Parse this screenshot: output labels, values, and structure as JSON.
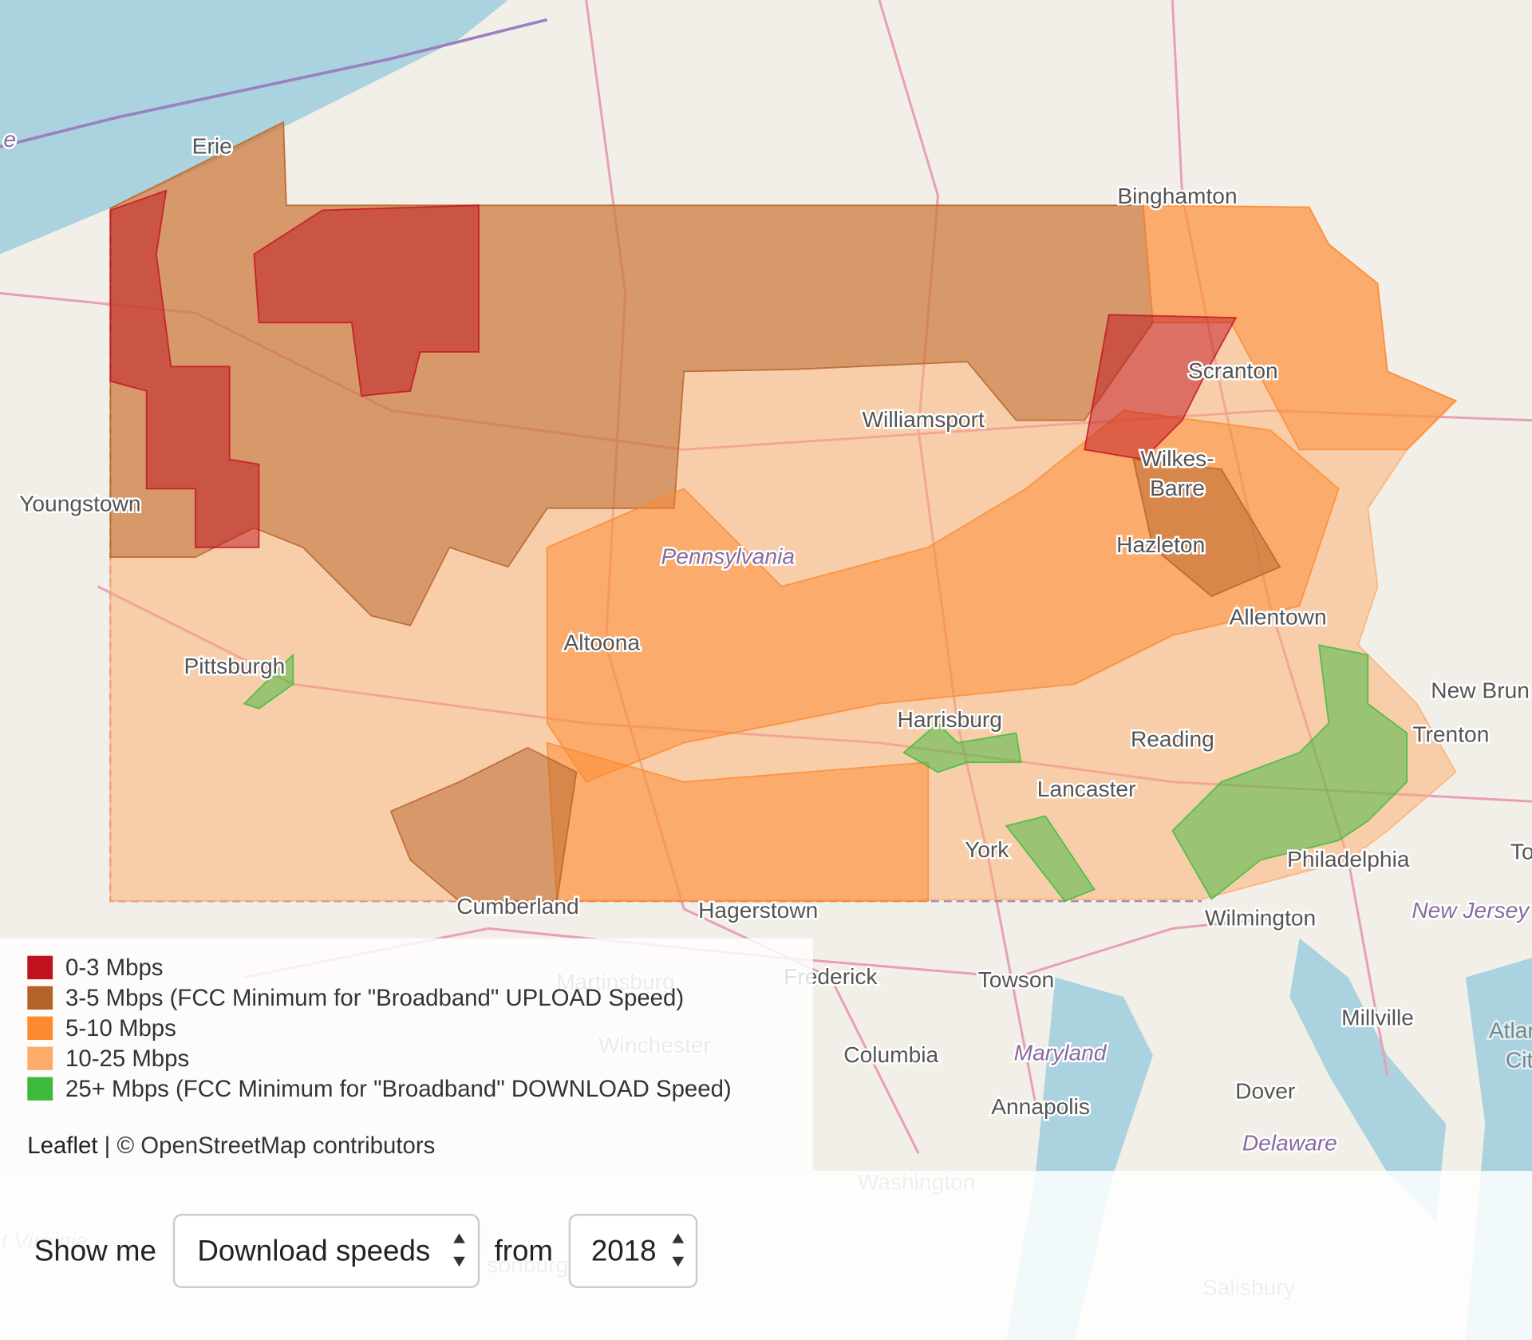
{
  "map": {
    "places": [
      "e",
      "Erie",
      "Binghamton",
      "Scranton",
      "Williamsport",
      "Wilkes-",
      "Barre",
      "Youngstown",
      "Hazleton",
      "Pennsylvania",
      "Allentown",
      "Altoona",
      "Pittsburgh",
      "New Brun",
      "Harrisburg",
      "Trenton",
      "Reading",
      "Lancaster",
      "York",
      "Philadelphia",
      "To",
      "Cumberland",
      "Hagerstown",
      "Wilmington",
      "New Jersey",
      "Martinsburg",
      "Frederick",
      "Towson",
      "Winchester",
      "Millville",
      "Atlan",
      "Columbia",
      "Maryland",
      "Cit",
      "Annapolis",
      "Dover",
      "Delaware",
      "Washington",
      "Salisbury",
      "st Virginia",
      "sonburg"
    ]
  },
  "legend": [
    {
      "label": "0-3 Mbps",
      "color": "#c0111f"
    },
    {
      "label": "3-5 Mbps (FCC Minimum for \"Broadband\" UPLOAD Speed)",
      "color": "#b5622a"
    },
    {
      "label": "5-10 Mbps",
      "color": "#fd8a2f"
    },
    {
      "label": "10-25 Mbps",
      "color": "#fdad6b"
    },
    {
      "label": "25+ Mbps (FCC Minimum for \"Broadband\" DOWNLOAD Speed)",
      "color": "#3cba3c"
    }
  ],
  "attribution": {
    "leaflet": "Leaflet",
    "separator": "| ©",
    "osm": "OpenStreetMap",
    "suffix": "contributors"
  },
  "controls": {
    "show_me": "Show me",
    "metric": "Download speeds",
    "from": "from",
    "year": "2018"
  }
}
